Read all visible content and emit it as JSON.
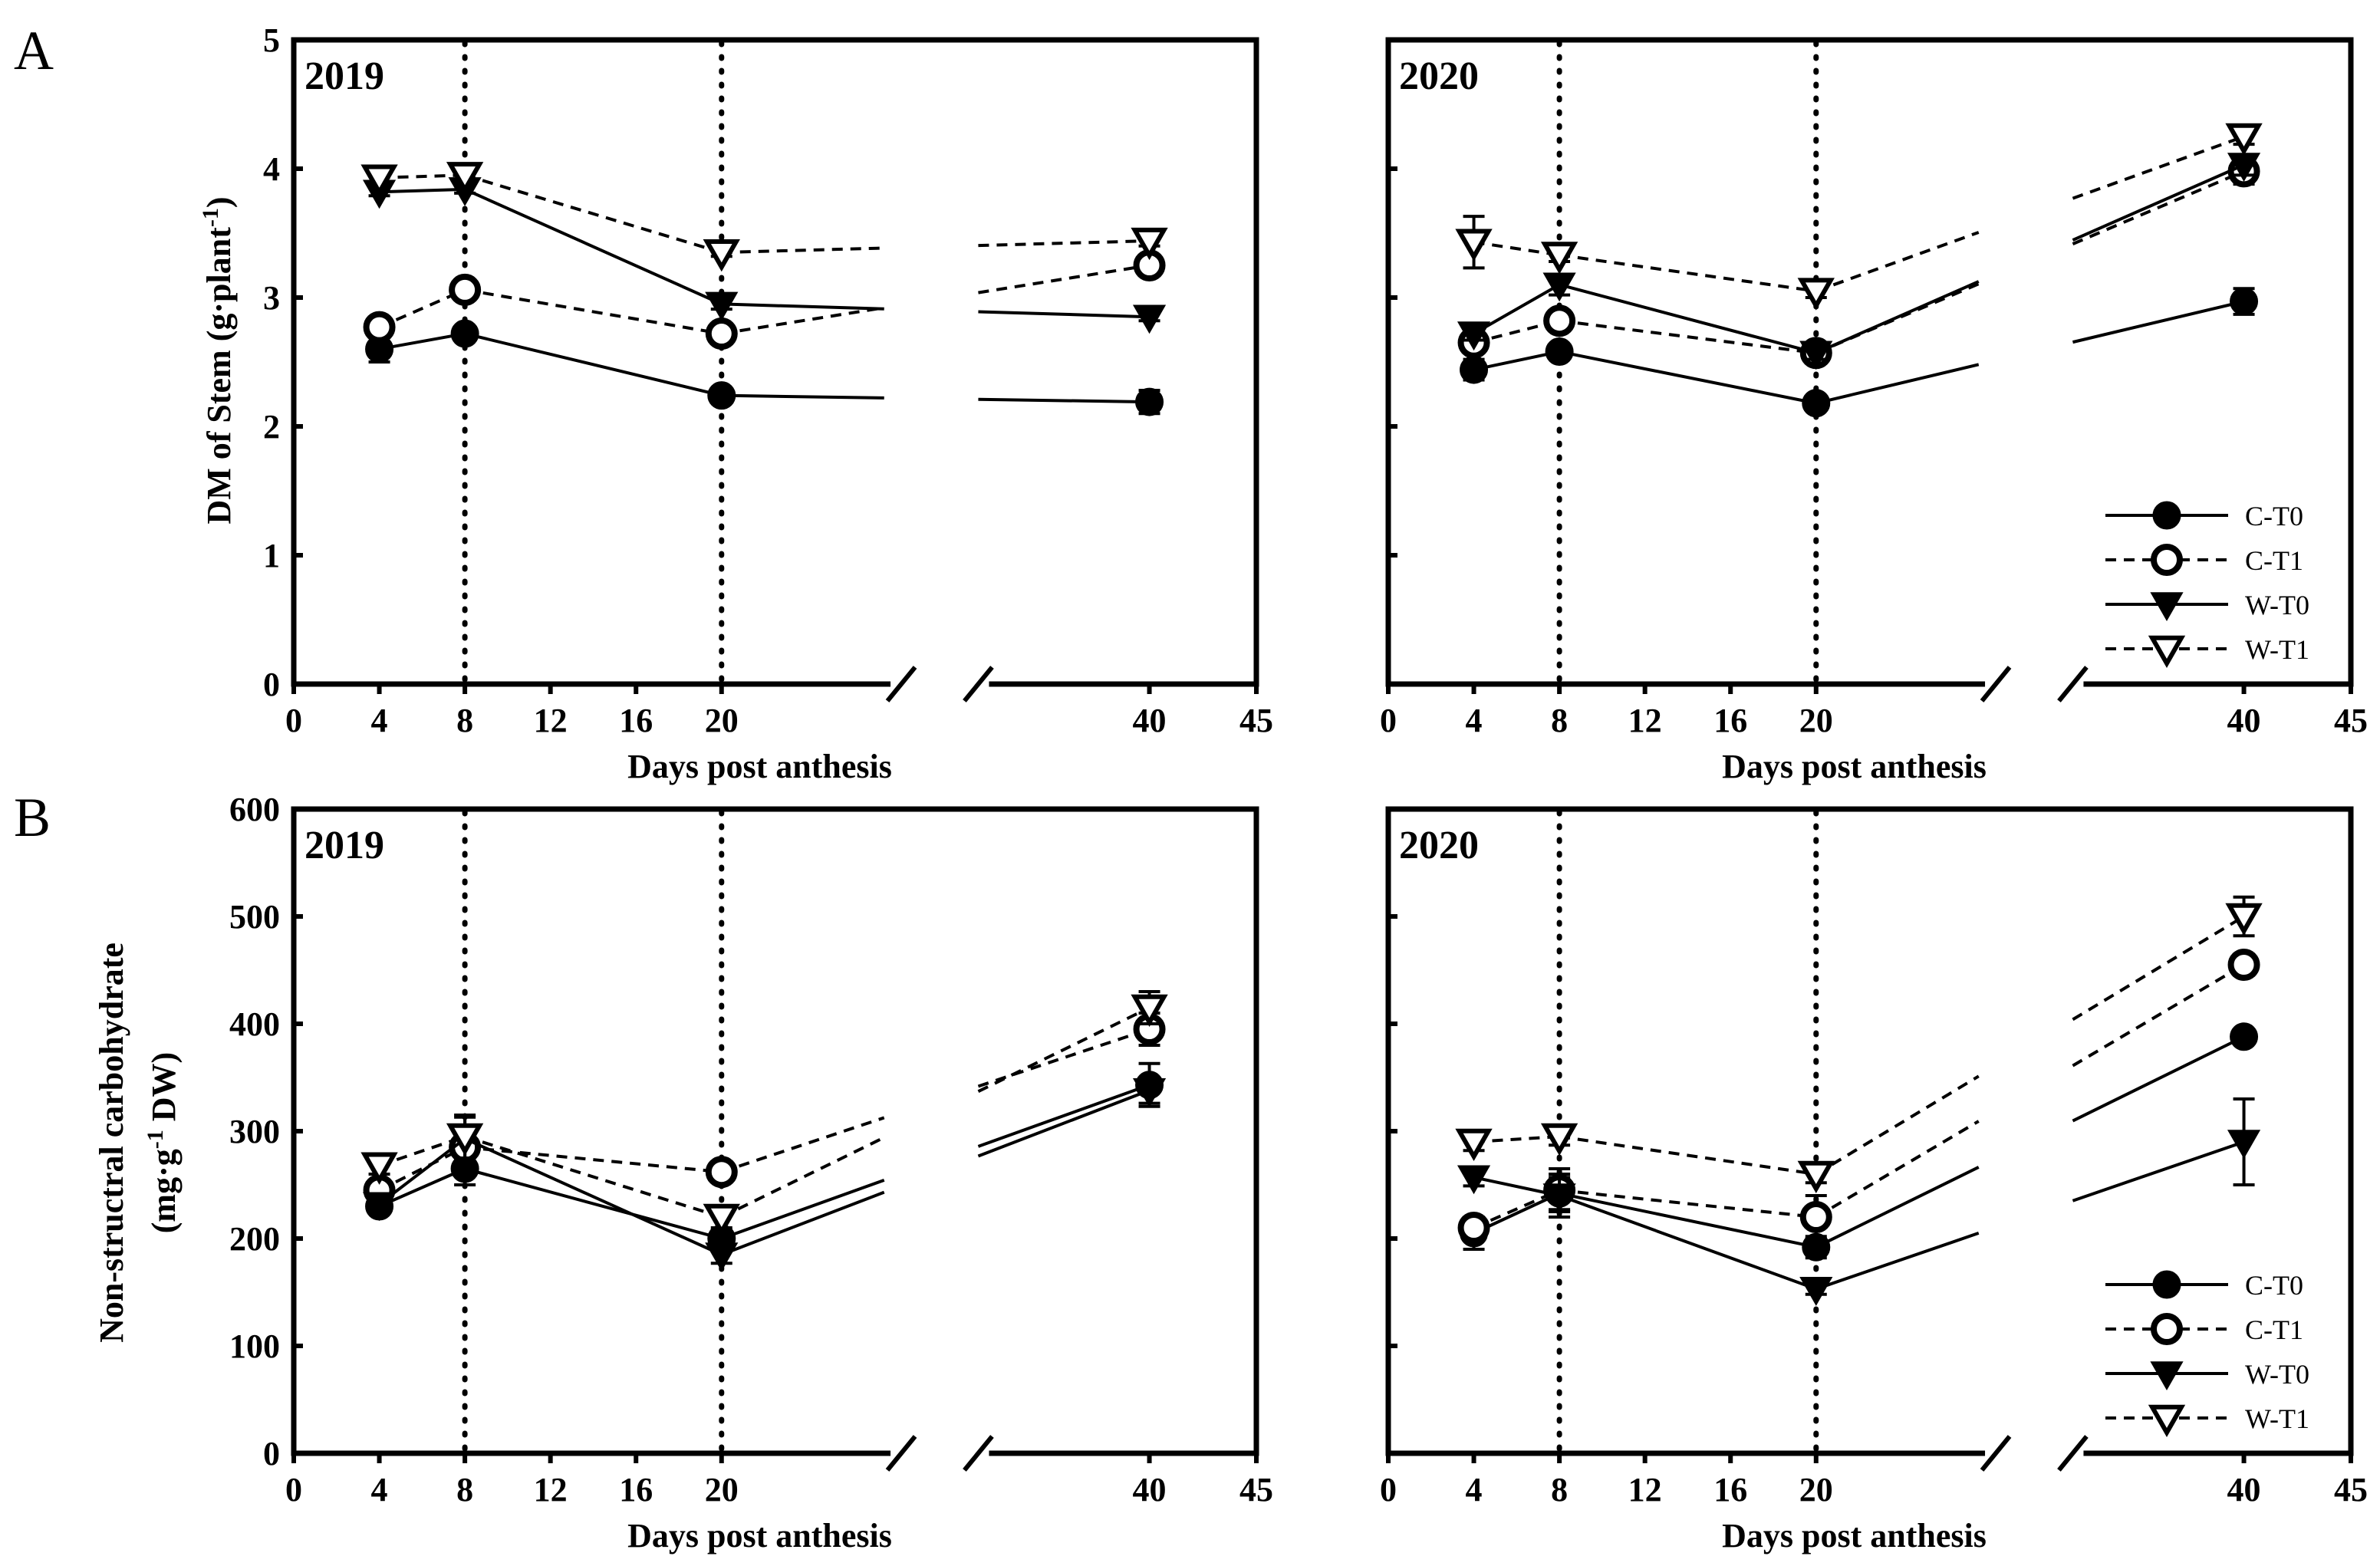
{
  "figure": {
    "panel_labels": [
      "A",
      "B"
    ]
  },
  "chart_data": [
    {
      "type": "line",
      "panel": "A",
      "year": "2019",
      "xlabel": "Days post  anthesis",
      "ylabel_parts": [
        "DM of Stem (g",
        "·",
        "plant",
        "-1",
        ")"
      ],
      "ylim": [
        0,
        5
      ],
      "yticks": [
        0,
        1,
        2,
        3,
        4,
        5
      ],
      "xlim": [
        0,
        45
      ],
      "xticks": [
        0,
        4,
        8,
        12,
        16,
        20,
        40,
        45
      ],
      "x_axis_break": "between 20 and 40",
      "vertical_dotted_lines_at": [
        8,
        20
      ],
      "show_y_tick_labels": true,
      "show_legend": false,
      "legend_position": "bottom-right",
      "series": [
        {
          "name": "C-T0",
          "marker": "filled-circle",
          "line": "solid",
          "x": [
            4,
            8,
            20,
            40
          ],
          "y": [
            2.6,
            2.72,
            2.24,
            2.19
          ],
          "err": [
            0.1,
            0.04,
            0.03,
            0.09
          ]
        },
        {
          "name": "C-T1",
          "marker": "open-circle",
          "line": "dashed",
          "x": [
            4,
            8,
            20,
            40
          ],
          "y": [
            2.77,
            3.06,
            2.72,
            3.25
          ],
          "err": [
            0.05,
            0.04,
            0.04,
            0.05
          ]
        },
        {
          "name": "W-T0",
          "marker": "filled-triangle",
          "line": "solid",
          "x": [
            4,
            8,
            20,
            40
          ],
          "y": [
            3.82,
            3.84,
            2.95,
            2.85
          ],
          "err": [
            0.03,
            0.03,
            0.04,
            0.03
          ]
        },
        {
          "name": "W-T1",
          "marker": "open-triangle",
          "line": "dashed",
          "x": [
            4,
            8,
            20,
            40
          ],
          "y": [
            3.93,
            3.95,
            3.35,
            3.44
          ],
          "err": [
            0.03,
            0.03,
            0.03,
            0.04
          ]
        }
      ]
    },
    {
      "type": "line",
      "panel": "A",
      "year": "2020",
      "xlabel": "Days post  anthesis",
      "ylim": [
        0,
        5
      ],
      "yticks": [
        0,
        1,
        2,
        3,
        4,
        5
      ],
      "xlim": [
        0,
        45
      ],
      "xticks": [
        0,
        4,
        8,
        12,
        16,
        20,
        40,
        45
      ],
      "x_axis_break": "between 20 and 40",
      "vertical_dotted_lines_at": [
        8,
        20
      ],
      "show_y_tick_labels": false,
      "show_legend": true,
      "legend_position": "bottom-right",
      "series": [
        {
          "name": "C-T0",
          "marker": "filled-circle",
          "line": "solid",
          "x": [
            4,
            8,
            20,
            40
          ],
          "y": [
            2.44,
            2.58,
            2.18,
            2.97
          ],
          "err": [
            0.08,
            0.05,
            0.03,
            0.1
          ]
        },
        {
          "name": "C-T1",
          "marker": "open-circle",
          "line": "dashed",
          "x": [
            4,
            8,
            20,
            40
          ],
          "y": [
            2.65,
            2.82,
            2.57,
            3.98
          ],
          "err": [
            0.08,
            0.07,
            0.08,
            0.1
          ]
        },
        {
          "name": "W-T0",
          "marker": "filled-triangle",
          "line": "solid",
          "x": [
            4,
            8,
            20,
            40
          ],
          "y": [
            2.72,
            3.1,
            2.57,
            4.03
          ],
          "err": [
            0.05,
            0.08,
            0.05,
            0.08
          ]
        },
        {
          "name": "W-T1",
          "marker": "open-triangle",
          "line": "dashed",
          "x": [
            4,
            8,
            20,
            40
          ],
          "y": [
            3.43,
            3.33,
            3.05,
            4.25
          ],
          "err": [
            0.2,
            0.05,
            0.05,
            0.06
          ]
        }
      ]
    },
    {
      "type": "line",
      "panel": "B",
      "year": "2019",
      "xlabel": "Days post  anthesis",
      "ylabel_line1": "Non-structral carbohydrate",
      "ylabel_line2_parts": [
        "(mg",
        "·",
        "g",
        "-1",
        " DW)"
      ],
      "ylim": [
        0,
        600
      ],
      "yticks": [
        0,
        100,
        200,
        300,
        400,
        500,
        600
      ],
      "xlim": [
        0,
        45
      ],
      "xticks": [
        0,
        4,
        8,
        12,
        16,
        20,
        40,
        45
      ],
      "x_axis_break": "between 20 and 40",
      "vertical_dotted_lines_at": [
        8,
        20
      ],
      "show_y_tick_labels": true,
      "show_legend": false,
      "legend_position": "bottom-right",
      "series": [
        {
          "name": "C-T0",
          "marker": "filled-circle",
          "line": "solid",
          "x": [
            4,
            8,
            20,
            40
          ],
          "y": [
            230,
            265,
            200,
            343
          ],
          "err": [
            5,
            15,
            8,
            20
          ]
        },
        {
          "name": "C-T1",
          "marker": "open-circle",
          "line": "dashed",
          "x": [
            4,
            8,
            20,
            40
          ],
          "y": [
            245,
            285,
            262,
            395
          ],
          "err": [
            8,
            10,
            6,
            15
          ]
        },
        {
          "name": "W-T0",
          "marker": "filled-triangle",
          "line": "solid",
          "x": [
            4,
            8,
            20,
            40
          ],
          "y": [
            232,
            293,
            185,
            338
          ],
          "err": [
            5,
            20,
            8,
            12
          ]
        },
        {
          "name": "W-T1",
          "marker": "open-triangle",
          "line": "dashed",
          "x": [
            4,
            8,
            20,
            40
          ],
          "y": [
            268,
            295,
            220,
            415
          ],
          "err": [
            8,
            20,
            10,
            15
          ]
        }
      ]
    },
    {
      "type": "line",
      "panel": "B",
      "year": "2020",
      "xlabel": "Days post  anthesis",
      "ylim": [
        0,
        600
      ],
      "yticks": [
        0,
        100,
        200,
        300,
        400,
        500,
        600
      ],
      "xlim": [
        0,
        45
      ],
      "xticks": [
        0,
        4,
        8,
        12,
        16,
        20,
        40,
        45
      ],
      "x_axis_break": "between 20 and 40",
      "vertical_dotted_lines_at": [
        8,
        20
      ],
      "show_y_tick_labels": false,
      "show_legend": true,
      "legend_position": "bottom-right",
      "series": [
        {
          "name": "C-T0",
          "marker": "filled-circle",
          "line": "solid",
          "x": [
            4,
            8,
            20,
            40
          ],
          "y": [
            205,
            242,
            192,
            388
          ],
          "err": [
            15,
            15,
            10,
            5
          ]
        },
        {
          "name": "C-T1",
          "marker": "open-circle",
          "line": "dashed",
          "x": [
            4,
            8,
            20,
            40
          ],
          "y": [
            210,
            245,
            220,
            455
          ],
          "err": [
            10,
            20,
            20,
            10
          ]
        },
        {
          "name": "W-T0",
          "marker": "filled-triangle",
          "line": "solid",
          "x": [
            4,
            8,
            20,
            40
          ],
          "y": [
            257,
            240,
            153,
            290
          ],
          "err": [
            8,
            20,
            5,
            40
          ]
        },
        {
          "name": "W-T1",
          "marker": "open-triangle",
          "line": "dashed",
          "x": [
            4,
            8,
            20,
            40
          ],
          "y": [
            290,
            295,
            260,
            500
          ],
          "err": [
            8,
            8,
            8,
            18
          ]
        }
      ]
    }
  ]
}
